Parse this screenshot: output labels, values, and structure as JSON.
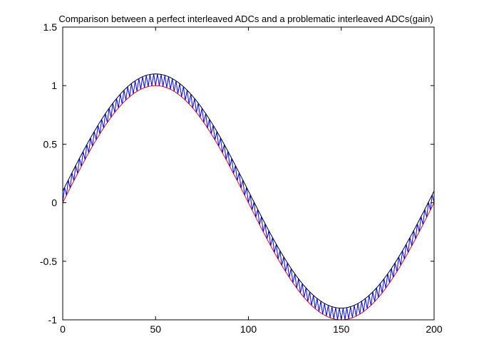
{
  "chart_data": {
    "type": "line",
    "title": "Comparison between a perfect interleaved ADCs and a problematic interleaved ADCs(gain)",
    "xlabel": "",
    "ylabel": "",
    "xlim": [
      0,
      200
    ],
    "ylim": [
      -1,
      1.5
    ],
    "x_ticks": [
      0,
      50,
      100,
      150,
      200
    ],
    "y_ticks": [
      -1,
      -0.5,
      0,
      0.5,
      1,
      1.5
    ],
    "x_tick_labels": [
      "0",
      "50",
      "100",
      "150",
      "200"
    ],
    "y_tick_labels": [
      "-1",
      "-0.5",
      "0",
      "0.5",
      "1",
      "1.5"
    ],
    "grid": false,
    "legend": "none",
    "series": [
      {
        "color": "#ff0000",
        "function": "sin(2*pi*x/200)",
        "x_range": [
          0,
          200
        ],
        "step": 1
      },
      {
        "color": "#0000ff",
        "function": "sin(2*pi*x/200) + (x mod 2 == 1 ? 0.1 : 0)",
        "x_range": [
          0,
          200
        ],
        "step": 1
      },
      {
        "color": "#000000",
        "function": "1.1*sin(2*pi*x/200) + 0.05 envelope (upper trace of gain-error ADC)",
        "x_range": [
          0,
          200
        ],
        "step": 1
      }
    ]
  }
}
